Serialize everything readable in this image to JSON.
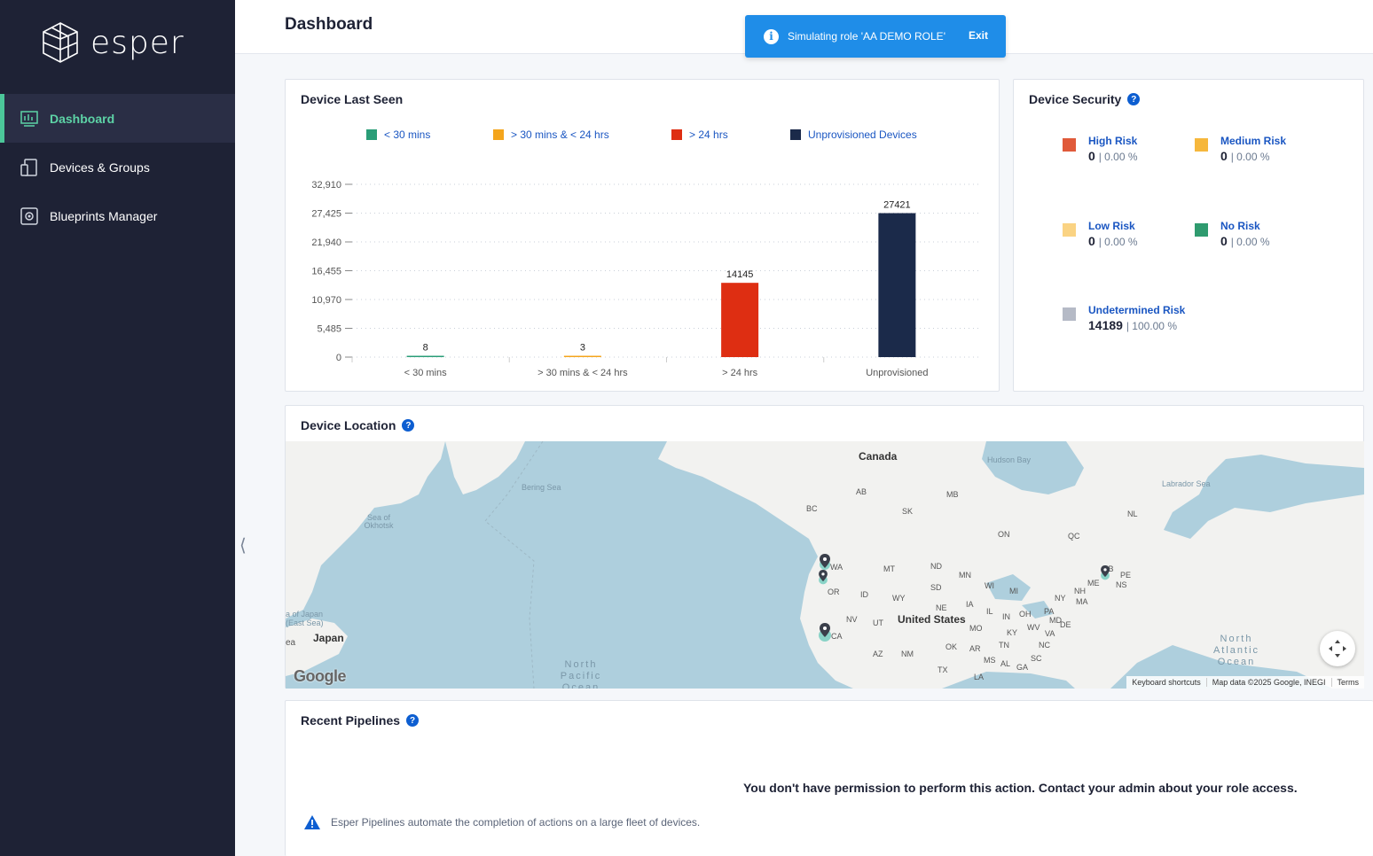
{
  "brand": {
    "name": "esper"
  },
  "sidebar": {
    "items": [
      {
        "label": "Dashboard",
        "icon": "dashboard-icon",
        "active": true
      },
      {
        "label": "Devices & Groups",
        "icon": "devices-icon",
        "active": false
      },
      {
        "label": "Blueprints Manager",
        "icon": "blueprints-icon",
        "active": false
      }
    ]
  },
  "header": {
    "title": "Dashboard"
  },
  "toast": {
    "message": "Simulating role 'AA DEMO ROLE'",
    "action": "Exit",
    "color": "#1f8de8"
  },
  "device_last_seen": {
    "title": "Device Last Seen",
    "legend": [
      {
        "label": "< 30 mins",
        "color": "#2a9d77"
      },
      {
        "label": "> 30 mins & < 24 hrs",
        "color": "#f4a51c"
      },
      {
        "label": "> 24 hrs",
        "color": "#de2e12"
      },
      {
        "label": "Unprovisioned Devices",
        "color": "#1b2a4a"
      }
    ]
  },
  "chart_data": {
    "type": "bar",
    "categories": [
      "< 30 mins",
      "> 30 mins & < 24 hrs",
      "> 24 hrs",
      "Unprovisioned"
    ],
    "values": [
      8,
      3,
      14145,
      27421
    ],
    "data_labels": [
      "8",
      "3",
      "14145",
      "27421"
    ],
    "colors": [
      "#2a9d77",
      "#f4a51c",
      "#de2e12",
      "#1b2a4a"
    ],
    "yticks": [
      "0",
      "5,485",
      "10,970",
      "16,455",
      "21,940",
      "27,425",
      "32,910"
    ],
    "ylim": [
      0,
      32910
    ],
    "grid": true,
    "legend_placement": "top"
  },
  "device_security": {
    "title": "Device Security",
    "risks": [
      {
        "label": "High Risk",
        "count": "0",
        "pct": "| 0.00 %",
        "color": "#e05a3a"
      },
      {
        "label": "Medium Risk",
        "count": "0",
        "pct": "| 0.00 %",
        "color": "#f6b73c"
      },
      {
        "label": "Low Risk",
        "count": "0",
        "pct": "| 0.00 %",
        "color": "#fad383"
      },
      {
        "label": "No Risk",
        "count": "0",
        "pct": "| 0.00 %",
        "color": "#2f9b6f"
      },
      {
        "label": "Undetermined Risk",
        "count": "14189",
        "pct": "| 100.00 %",
        "color": "#b5bac6"
      }
    ]
  },
  "device_location": {
    "title": "Device Location",
    "map": {
      "labels": {
        "canada": "Canada",
        "united_states": "United States",
        "japan": "Japan",
        "hudson_bay": "Hudson Bay",
        "labrador_sea": "Labrador Sea",
        "bering_sea": "Bering Sea",
        "okhotsk": "Sea of Okhotsk",
        "east_sea": "a of Japan (East Sea)",
        "sea": "ea",
        "north_pacific": "North Pacific Ocean",
        "north_atlantic": "North Atlantic Ocean",
        "ab": "AB",
        "mb": "MB",
        "bc": "BC",
        "sk": "SK",
        "on": "ON",
        "qc": "QC",
        "nl": "NL",
        "wa": "WA",
        "mt": "MT",
        "nd": "ND",
        "mn": "MN",
        "or": "OR",
        "id": "ID",
        "wy": "WY",
        "sd": "SD",
        "wi": "WI",
        "mi": "MI",
        "ny": "NY",
        "nh": "NH",
        "me": "ME",
        "ma": "MA",
        "nb": "NB",
        "pe": "PE",
        "ns": "NS",
        "nv": "NV",
        "ut": "UT",
        "ne": "NE",
        "ia": "IA",
        "il": "IL",
        "in": "IN",
        "oh": "OH",
        "pa": "PA",
        "md": "MD",
        "de": "DE",
        "ca": "CA",
        "mo": "MO",
        "ky": "KY",
        "wv": "WV",
        "va": "VA",
        "az": "AZ",
        "nm": "NM",
        "ok": "OK",
        "ar": "AR",
        "tn": "TN",
        "nc": "NC",
        "ms": "MS",
        "al": "AL",
        "ga": "GA",
        "sc": "SC",
        "tx": "TX",
        "la": "LA"
      },
      "google": "Google",
      "footer": [
        "Keyboard shortcuts",
        "Map data ©2025 Google, INEGI",
        "Terms"
      ]
    }
  },
  "recent_pipelines": {
    "title": "Recent Pipelines",
    "no_permission": "You don't have permission to perform this action. Contact your admin about your role access.",
    "info": "Esper Pipelines automate the completion of actions on a large fleet of devices."
  }
}
